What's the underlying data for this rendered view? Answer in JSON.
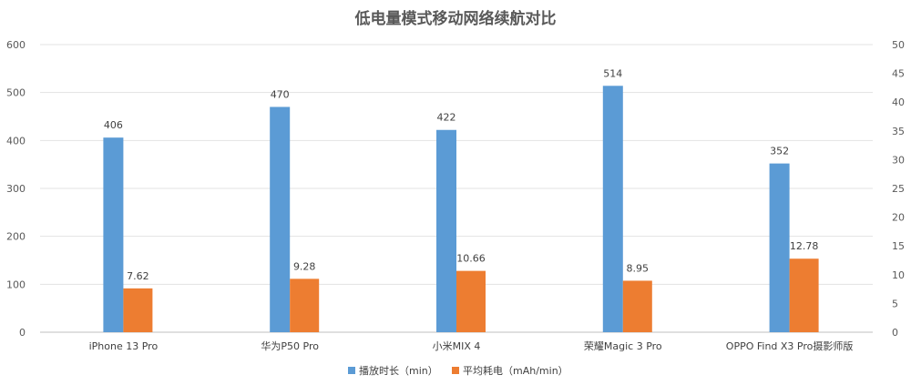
{
  "chart_data": {
    "type": "bar",
    "title": "低电量模式移动网络续航对比",
    "categories": [
      "iPhone 13 Pro",
      "华为P50 Pro",
      "小米MIX 4",
      "荣耀Magic 3 Pro",
      "OPPO Find X3 Pro摄影师版"
    ],
    "series": [
      {
        "name": "播放时长（min）",
        "axis": "left",
        "color": "#5b9bd5",
        "values": [
          406,
          470,
          422,
          514,
          352
        ]
      },
      {
        "name": "平均耗电（mAh/min）",
        "axis": "right",
        "color": "#ed7d31",
        "values": [
          7.62,
          9.28,
          10.66,
          8.95,
          12.78
        ]
      }
    ],
    "y_left": {
      "min": 0,
      "max": 600,
      "ticks": [
        0,
        100,
        200,
        300,
        400,
        500,
        600
      ]
    },
    "y_right": {
      "min": 0,
      "max": 50,
      "ticks": [
        0,
        5,
        10,
        15,
        20,
        25,
        30,
        35,
        40,
        45,
        50
      ]
    },
    "grid": true,
    "legend_position": "bottom"
  }
}
